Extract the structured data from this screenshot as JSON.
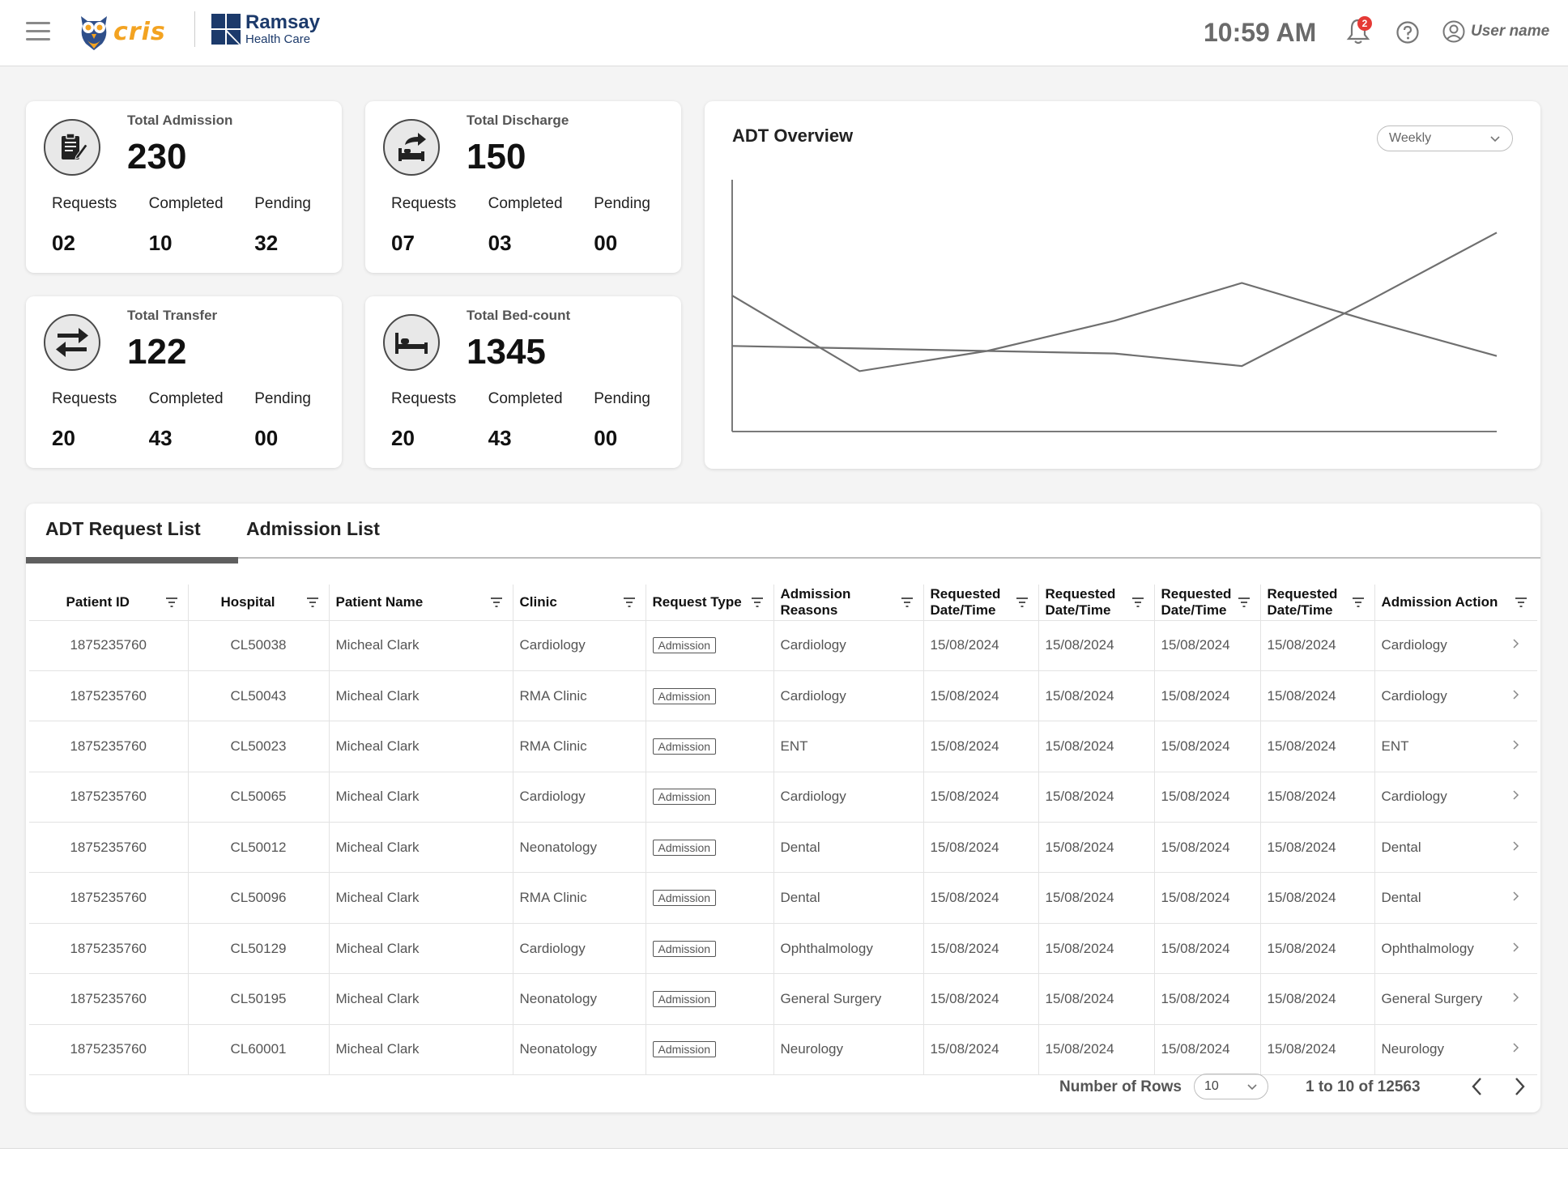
{
  "header": {
    "brand": "cris",
    "partner_name": "Ramsay",
    "partner_sub": "Health Care",
    "time": "10:59 AM",
    "notification_count": "2",
    "user_name": "User name"
  },
  "cards": [
    {
      "title": "Total Admission",
      "total": "230",
      "labels": [
        "Requests",
        "Completed",
        "Pending"
      ],
      "values": [
        "02",
        "10",
        "32"
      ],
      "icon": "clipboard-icon"
    },
    {
      "title": "Total Discharge",
      "total": "150",
      "labels": [
        "Requests",
        "Completed",
        "Pending"
      ],
      "values": [
        "07",
        "03",
        "00"
      ],
      "icon": "discharge-bed-icon"
    },
    {
      "title": "Total Transfer",
      "total": "122",
      "labels": [
        "Requests",
        "Completed",
        "Pending"
      ],
      "values": [
        "20",
        "43",
        "00"
      ],
      "icon": "transfer-arrows-icon"
    },
    {
      "title": "Total Bed-count",
      "total": "1345",
      "labels": [
        "Requests",
        "Completed",
        "Pending"
      ],
      "values": [
        "20",
        "43",
        "00"
      ],
      "icon": "bed-icon"
    }
  ],
  "chart": {
    "title": "ADT Overview",
    "period": "Weekly"
  },
  "chart_data": {
    "type": "line",
    "title": "ADT Overview",
    "xlabel": "",
    "ylabel": "",
    "grid": false,
    "x": [
      0,
      1,
      2,
      3,
      4,
      5,
      6
    ],
    "xlim": [
      0,
      6
    ],
    "ylim": [
      0,
      100
    ],
    "series": [
      {
        "values": [
          54,
          24,
          32,
          44,
          59,
          44,
          30
        ]
      },
      {
        "values": [
          34,
          33,
          32,
          31,
          26,
          52,
          79
        ]
      }
    ]
  },
  "tabs": [
    {
      "label": "ADT Request List",
      "active": true
    },
    {
      "label": "Admission List",
      "active": false
    }
  ],
  "table": {
    "columns": [
      [
        "Patient ID"
      ],
      [
        "Hospital"
      ],
      [
        "Patient Name"
      ],
      [
        "Clinic"
      ],
      [
        "Request Type"
      ],
      [
        "Admission",
        "Reasons"
      ],
      [
        "Requested",
        "Date/Time"
      ],
      [
        "Requested",
        "Date/Time"
      ],
      [
        "Requested",
        "Date/Time"
      ],
      [
        "Requested",
        "Date/Time"
      ],
      [
        "Admission Action"
      ]
    ],
    "rows": [
      [
        "1875235760",
        "CL50038",
        "Micheal Clark",
        "Cardiology",
        "Admission",
        "Cardiology",
        "15/08/2024",
        "15/08/2024",
        "15/08/2024",
        "15/08/2024",
        "Cardiology"
      ],
      [
        "1875235760",
        "CL50043",
        "Micheal Clark",
        "RMA Clinic",
        "Admission",
        "Cardiology",
        "15/08/2024",
        "15/08/2024",
        "15/08/2024",
        "15/08/2024",
        "Cardiology"
      ],
      [
        "1875235760",
        "CL50023",
        "Micheal Clark",
        "RMA Clinic",
        "Admission",
        "ENT",
        "15/08/2024",
        "15/08/2024",
        "15/08/2024",
        "15/08/2024",
        "ENT"
      ],
      [
        "1875235760",
        "CL50065",
        "Micheal Clark",
        "Cardiology",
        "Admission",
        "Cardiology",
        "15/08/2024",
        "15/08/2024",
        "15/08/2024",
        "15/08/2024",
        "Cardiology"
      ],
      [
        "1875235760",
        "CL50012",
        "Micheal Clark",
        "Neonatology",
        "Admission",
        "Dental",
        "15/08/2024",
        "15/08/2024",
        "15/08/2024",
        "15/08/2024",
        "Dental"
      ],
      [
        "1875235760",
        "CL50096",
        "Micheal Clark",
        "RMA Clinic",
        "Admission",
        "Dental",
        "15/08/2024",
        "15/08/2024",
        "15/08/2024",
        "15/08/2024",
        "Dental"
      ],
      [
        "1875235760",
        "CL50129",
        "Micheal Clark",
        "Cardiology",
        "Admission",
        "Ophthalmology",
        "15/08/2024",
        "15/08/2024",
        "15/08/2024",
        "15/08/2024",
        "Ophthalmology"
      ],
      [
        "1875235760",
        "CL50195",
        "Micheal Clark",
        "Neonatology",
        "Admission",
        "General Surgery",
        "15/08/2024",
        "15/08/2024",
        "15/08/2024",
        "15/08/2024",
        "General Surgery"
      ],
      [
        "1875235760",
        "CL60001",
        "Micheal Clark",
        "Neonatology",
        "Admission",
        "Neurology",
        "15/08/2024",
        "15/08/2024",
        "15/08/2024",
        "15/08/2024",
        "Neurology"
      ]
    ]
  },
  "pagination": {
    "rows_label": "Number of Rows",
    "rows_value": "10",
    "range": "1 to 10 of 12563"
  },
  "colors": {
    "accent": "#5f5f5f",
    "brand_orange": "#f3a321",
    "brand_navy": "#1c3a6b",
    "badge": "#e53935"
  }
}
